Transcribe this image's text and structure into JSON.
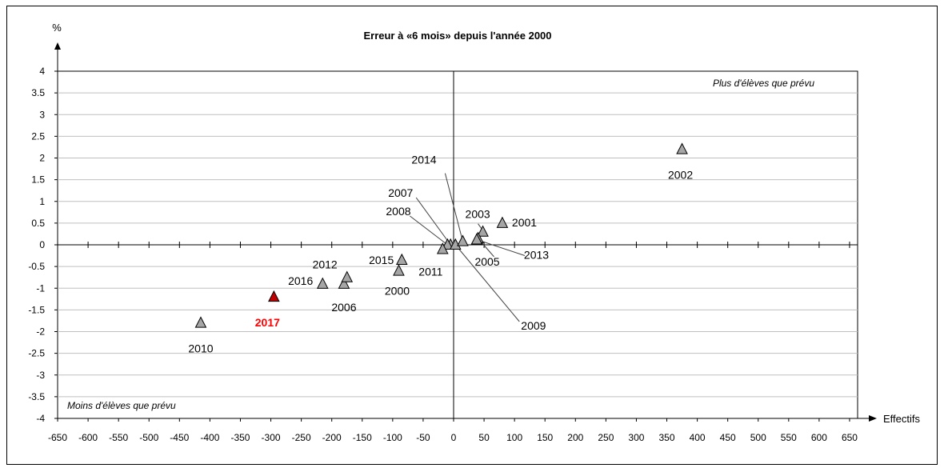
{
  "chart_data": {
    "type": "scatter",
    "title": "Erreur à «6 mois» depuis l'année 2000",
    "xlabel": "Effectifs",
    "ylabel": "%",
    "xlim": [
      -650,
      650
    ],
    "ylim": [
      -4,
      4
    ],
    "x_ticks": [
      -650,
      -600,
      -550,
      -500,
      -450,
      -400,
      -350,
      -300,
      -250,
      -200,
      -150,
      -100,
      -50,
      0,
      50,
      100,
      150,
      200,
      250,
      300,
      350,
      400,
      450,
      500,
      550,
      600,
      650
    ],
    "y_ticks": [
      4,
      3.5,
      3,
      2.5,
      2,
      1.5,
      1,
      0.5,
      0,
      -0.5,
      -1,
      -1.5,
      -2,
      -2.5,
      -3,
      -3.5,
      -4
    ],
    "grid": "horizontal",
    "annotations": {
      "top_right": "Plus d'élèves que prévu",
      "bottom_left": "Moins d'élèves que prévu"
    },
    "colors": {
      "default_marker": "#a6a6a6",
      "highlight_marker": "#c00000",
      "highlight_label": "#ff0000"
    },
    "points": [
      {
        "label": "2000",
        "x": -90,
        "y": -0.6
      },
      {
        "label": "2001",
        "x": 80,
        "y": 0.5
      },
      {
        "label": "2002",
        "x": 375,
        "y": 2.2
      },
      {
        "label": "2003",
        "x": 48,
        "y": 0.3
      },
      {
        "label": "2005",
        "x": 40,
        "y": 0.15
      },
      {
        "label": "2006",
        "x": -180,
        "y": -0.9
      },
      {
        "label": "2007",
        "x": -5,
        "y": 0.0
      },
      {
        "label": "2008",
        "x": -10,
        "y": 0.0
      },
      {
        "label": "2009",
        "x": 3,
        "y": 0.0
      },
      {
        "label": "2010",
        "x": -415,
        "y": -1.8
      },
      {
        "label": "2011",
        "x": -18,
        "y": -0.1
      },
      {
        "label": "2012",
        "x": -175,
        "y": -0.75
      },
      {
        "label": "2013",
        "x": 38,
        "y": 0.12
      },
      {
        "label": "2014",
        "x": 15,
        "y": 0.08
      },
      {
        "label": "2015",
        "x": -85,
        "y": -0.35
      },
      {
        "label": "2016",
        "x": -215,
        "y": -0.9
      },
      {
        "label": "2017",
        "x": -295,
        "y": -1.2,
        "highlight": true
      }
    ]
  }
}
